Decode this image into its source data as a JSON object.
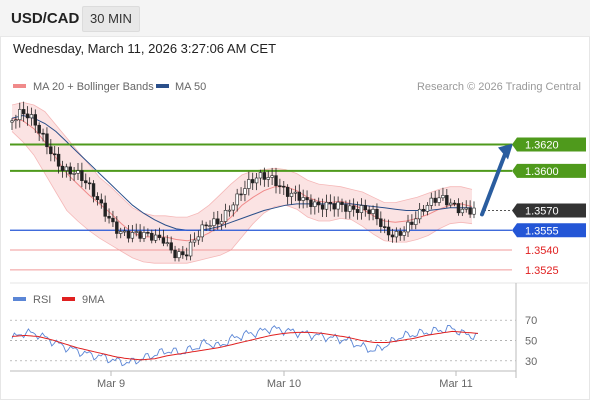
{
  "header": {
    "symbol": "USD/CAD",
    "timeframe": "30 MIN",
    "timestamp": "Wednesday, March 11, 2026 3:27:06 AM CET"
  },
  "legend": {
    "ma20_label": "MA 20 + Bollinger Bands",
    "ma50_label": "MA 50",
    "credit": "Research © 2026 Trading Central",
    "ma20_color": "#f08a8a",
    "ma50_color": "#2a4f8a"
  },
  "rsi_legend": {
    "rsi_label": "RSI",
    "ma_label": "9MA",
    "rsi_color": "#5b86d6",
    "ma_color": "#e02020"
  },
  "chart_data": [
    {
      "type": "candlestick",
      "x_labels": [
        "Mar 9",
        "Mar 10",
        "Mar 11"
      ],
      "ylim": [
        1.3515,
        1.365
      ],
      "levels": [
        {
          "value": 1.362,
          "label": "1.3620",
          "kind": "resistance",
          "color": "#4f9a1c"
        },
        {
          "value": 1.36,
          "label": "1.3600",
          "kind": "resistance",
          "color": "#4f9a1c"
        },
        {
          "value": 1.357,
          "label": "1.3570",
          "kind": "last-price",
          "color": "#333333"
        },
        {
          "value": 1.3555,
          "label": "1.3555",
          "kind": "pivot",
          "color": "#2456d6"
        },
        {
          "value": 1.354,
          "label": "1.3540",
          "kind": "support",
          "color": "#e05050"
        },
        {
          "value": 1.3525,
          "label": "1.3525",
          "kind": "support",
          "color": "#e05050"
        }
      ],
      "price_anchors": [
        1.3637,
        1.364,
        1.3636,
        1.3628,
        1.3618,
        1.3604,
        1.3596,
        1.3586,
        1.3578,
        1.357,
        1.3558,
        1.355,
        1.3546,
        1.3548,
        1.3552,
        1.3542,
        1.3536,
        1.3545,
        1.3557,
        1.3564,
        1.3578,
        1.3585,
        1.3588,
        1.3592,
        1.3595,
        1.359,
        1.3584,
        1.3572,
        1.3568,
        1.3575,
        1.358,
        1.3574,
        1.3568,
        1.3562,
        1.3553,
        1.3556,
        1.3562,
        1.3565,
        1.357,
        1.3578,
        1.3579,
        1.3575,
        1.357
      ],
      "ma20": [
        1.364,
        1.3638,
        1.3632,
        1.3622,
        1.361,
        1.3598,
        1.359,
        1.3582,
        1.3575,
        1.3568,
        1.356,
        1.3553,
        1.355,
        1.355,
        1.355,
        1.3548,
        1.3547,
        1.3549,
        1.3553,
        1.3558,
        1.3565,
        1.3574,
        1.358,
        1.3585,
        1.3588,
        1.3588,
        1.3585,
        1.358,
        1.3577,
        1.3576,
        1.3577,
        1.3575,
        1.3571,
        1.3566,
        1.3562,
        1.3561,
        1.3562,
        1.3564,
        1.3567,
        1.3571,
        1.3574,
        1.3575,
        1.3573
      ],
      "ma50": [
        1.364,
        1.3642,
        1.364,
        1.3636,
        1.363,
        1.3622,
        1.3614,
        1.3606,
        1.3598,
        1.359,
        1.3582,
        1.3574,
        1.3568,
        1.3563,
        1.3559,
        1.3556,
        1.3555,
        1.3555,
        1.3556,
        1.3558,
        1.3561,
        1.3564,
        1.3567,
        1.357,
        1.3572,
        1.3574,
        1.3575,
        1.3575,
        1.3575,
        1.3575,
        1.3575,
        1.3575,
        1.3574,
        1.3573,
        1.3572,
        1.3571,
        1.357,
        1.357,
        1.357,
        1.3571,
        1.3572,
        1.3572,
        1.3572
      ],
      "bb_upper": [
        1.365,
        1.3652,
        1.365,
        1.3645,
        1.3635,
        1.3625,
        1.3615,
        1.3605,
        1.3595,
        1.3588,
        1.358,
        1.3572,
        1.3568,
        1.3566,
        1.3566,
        1.3565,
        1.3565,
        1.3568,
        1.3574,
        1.3582,
        1.359,
        1.3597,
        1.36,
        1.3601,
        1.3602,
        1.3601,
        1.3598,
        1.3593,
        1.359,
        1.3589,
        1.3588,
        1.3586,
        1.3584,
        1.358,
        1.3576,
        1.3576,
        1.3578,
        1.358,
        1.3583,
        1.3586,
        1.3588,
        1.3588,
        1.3586
      ],
      "bb_lower": [
        1.363,
        1.3622,
        1.3612,
        1.3598,
        1.3584,
        1.357,
        1.3562,
        1.3555,
        1.3549,
        1.3544,
        1.3539,
        1.3534,
        1.3531,
        1.353,
        1.353,
        1.353,
        1.353,
        1.3532,
        1.3534,
        1.3536,
        1.354,
        1.355,
        1.356,
        1.3568,
        1.3573,
        1.3574,
        1.3571,
        1.3565,
        1.3562,
        1.3562,
        1.3564,
        1.3563,
        1.3558,
        1.3552,
        1.3547,
        1.3546,
        1.3546,
        1.3548,
        1.3551,
        1.3556,
        1.356,
        1.3561,
        1.356
      ],
      "forecast": {
        "from": 1.3567,
        "to": 1.362,
        "direction": "up",
        "color": "#2a5d9f"
      }
    },
    {
      "type": "line",
      "name": "RSI",
      "ylim": [
        20,
        80
      ],
      "y_ticks": [
        70,
        50,
        30
      ],
      "rsi": [
        52,
        58,
        56,
        50,
        44,
        40,
        36,
        34,
        30,
        28,
        32,
        36,
        40,
        38,
        42,
        48,
        44,
        52,
        56,
        58,
        62,
        60,
        58,
        56,
        54,
        52,
        50,
        44,
        40,
        46,
        54,
        56,
        58,
        60,
        62,
        56,
        54
      ],
      "rsi_ma": [
        54,
        55,
        54,
        51,
        47,
        43,
        40,
        37,
        34,
        32,
        31,
        32,
        35,
        37,
        39,
        41,
        43,
        46,
        49,
        52,
        55,
        57,
        58,
        58,
        57,
        55,
        53,
        50,
        48,
        48,
        50,
        52,
        55,
        57,
        59,
        58,
        57
      ]
    }
  ]
}
